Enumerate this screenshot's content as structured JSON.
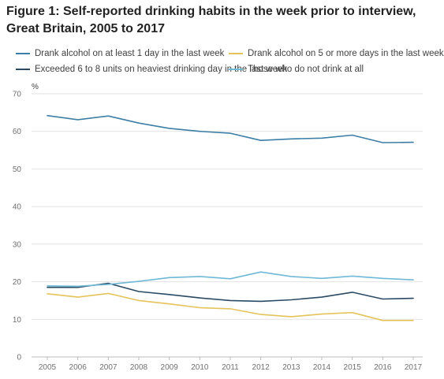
{
  "title": "Figure 1: Self-reported drinking habits in the week prior to interview, Great Britain, 2005 to 2017",
  "chart_data": {
    "type": "line",
    "title": "Figure 1: Self-reported drinking habits in the week prior to interview, Great Britain, 2005 to 2017",
    "ylabel": "%",
    "xlabel": "",
    "ylim": [
      0,
      70
    ],
    "yticks": [
      0,
      10,
      20,
      30,
      40,
      50,
      60,
      70
    ],
    "grid": true,
    "legend_position": "top",
    "categories": [
      "2005",
      "2006",
      "2007",
      "2008",
      "2009",
      "2010",
      "2011",
      "2012",
      "2013",
      "2014",
      "2015",
      "2016",
      "2017"
    ],
    "series": [
      {
        "name": "Drank alcohol on at least 1 day in the last week",
        "color": "#3d7ea6",
        "values": [
          64.2,
          63.1,
          64.1,
          62.2,
          60.8,
          60.0,
          59.5,
          57.6,
          58.0,
          58.2,
          59.0,
          57.0,
          57.1
        ]
      },
      {
        "name": "Drank alcohol on 5 or more days in the last week",
        "color": "#e5c35a",
        "values": [
          16.8,
          15.9,
          16.9,
          15.0,
          14.1,
          13.1,
          12.8,
          11.3,
          10.7,
          11.4,
          11.8,
          9.7,
          9.7
        ]
      },
      {
        "name": "Exceeded 6 to 8 units on heaviest drinking day in the last week",
        "color": "#2a4a63",
        "values": [
          18.5,
          18.5,
          19.6,
          17.4,
          16.6,
          15.7,
          15.0,
          14.8,
          15.2,
          15.9,
          17.2,
          15.4,
          15.6
        ]
      },
      {
        "name": "Those who do not drink at all",
        "color": "#6fb8d6",
        "values": [
          18.9,
          18.8,
          19.3,
          20.1,
          21.1,
          21.4,
          20.8,
          22.6,
          21.4,
          20.9,
          21.5,
          20.9,
          20.5
        ]
      }
    ]
  }
}
